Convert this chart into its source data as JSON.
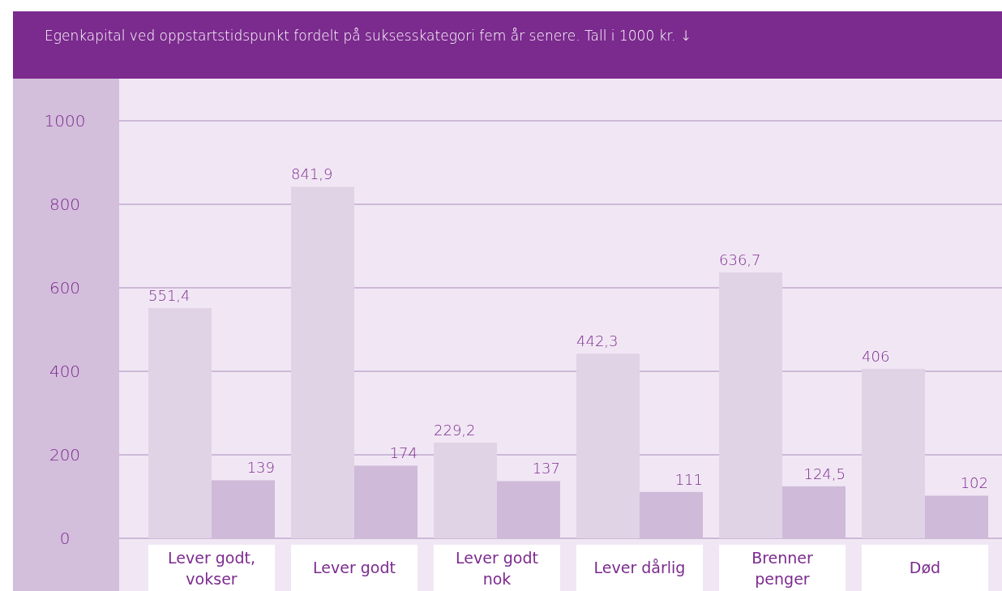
{
  "chart_data": {
    "type": "bar",
    "title": "Egenkapital ved oppstartstidspunkt fordelt på suksesskategori fem år senere. Tall i 1000 kr. ↓",
    "categories": [
      "Lever godt, vokser",
      "Lever godt",
      "Lever godt nok",
      "Lever dårlig",
      "Brenner penger",
      "Død"
    ],
    "series": [
      {
        "color": "#e0d3e6",
        "values": [
          551.4,
          841.9,
          229.2,
          442.3,
          636.7,
          406
        ],
        "value_labels": [
          "551,4",
          "841,9",
          "229,2",
          "442,3",
          "636,7",
          "406"
        ]
      },
      {
        "color": "#cfbad9",
        "values": [
          139,
          174,
          137,
          111,
          124.5,
          102
        ],
        "value_labels": [
          "139",
          "174",
          "137",
          "111",
          "124,5",
          "102"
        ]
      }
    ],
    "ylim": [
      0,
      1000
    ],
    "yticks": [
      0,
      200,
      400,
      600,
      800,
      1000
    ],
    "grid": "y"
  }
}
